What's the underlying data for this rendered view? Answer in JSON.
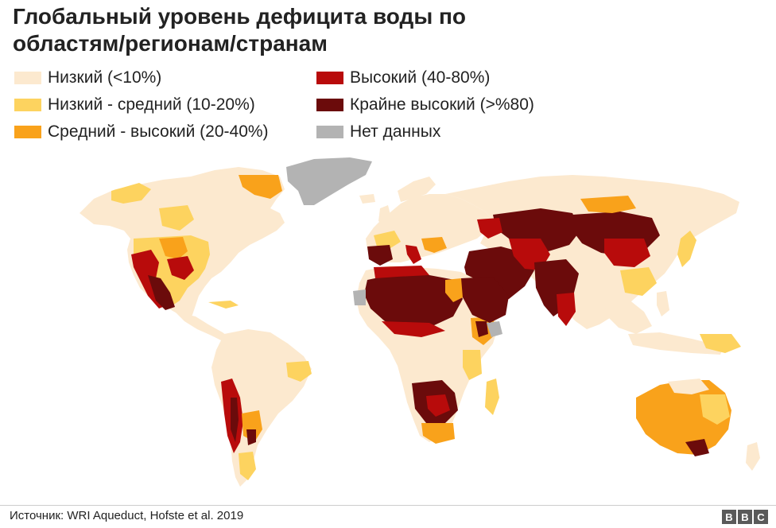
{
  "title": "Глобальный уровень дефицита воды по областям/регионам/странам",
  "legend": [
    {
      "label": "Низкий (<10%)",
      "color": "#fce9cf"
    },
    {
      "label": "Низкий - средний (10-20%)",
      "color": "#fdd35f"
    },
    {
      "label": "Средний - высокий (20-40%)",
      "color": "#f9a21b"
    },
    {
      "label": "Высокий (40-80%)",
      "color": "#b80b0b"
    },
    {
      "label": "Крайне высокий  (>%80)",
      "color": "#6b0b0b"
    },
    {
      "label": "Нет данных",
      "color": "#b3b3b3"
    }
  ],
  "source": "Источник: WRI Aqueduct, Hofste et al. 2019",
  "brand": [
    "B",
    "B",
    "C"
  ]
}
